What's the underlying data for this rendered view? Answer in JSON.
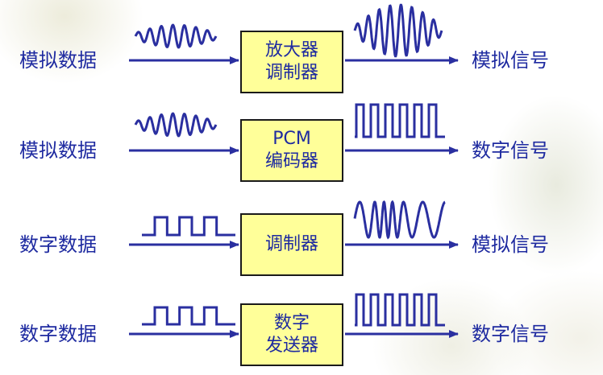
{
  "colors": {
    "stroke": "#2a2fa0",
    "box_fill": "#ffff99",
    "text": "#1e2aa0"
  },
  "rows": [
    {
      "input": "模拟数据",
      "box_lines": [
        "放大器",
        "调制器"
      ],
      "output": "模拟信号",
      "input_wave": "analog",
      "output_wave": "analog-amplified"
    },
    {
      "input": "模拟数据",
      "box_lines": [
        "PCM",
        "编码器"
      ],
      "output": "数字信号",
      "input_wave": "analog",
      "output_wave": "digital-pulse"
    },
    {
      "input": "数字数据",
      "box_lines": [
        "调制器"
      ],
      "output": "模拟信号",
      "input_wave": "square",
      "output_wave": "fm-analog"
    },
    {
      "input": "数字数据",
      "box_lines": [
        "数字",
        "发送器"
      ],
      "output": "数字信号",
      "input_wave": "square",
      "output_wave": "digital-pulse"
    }
  ]
}
